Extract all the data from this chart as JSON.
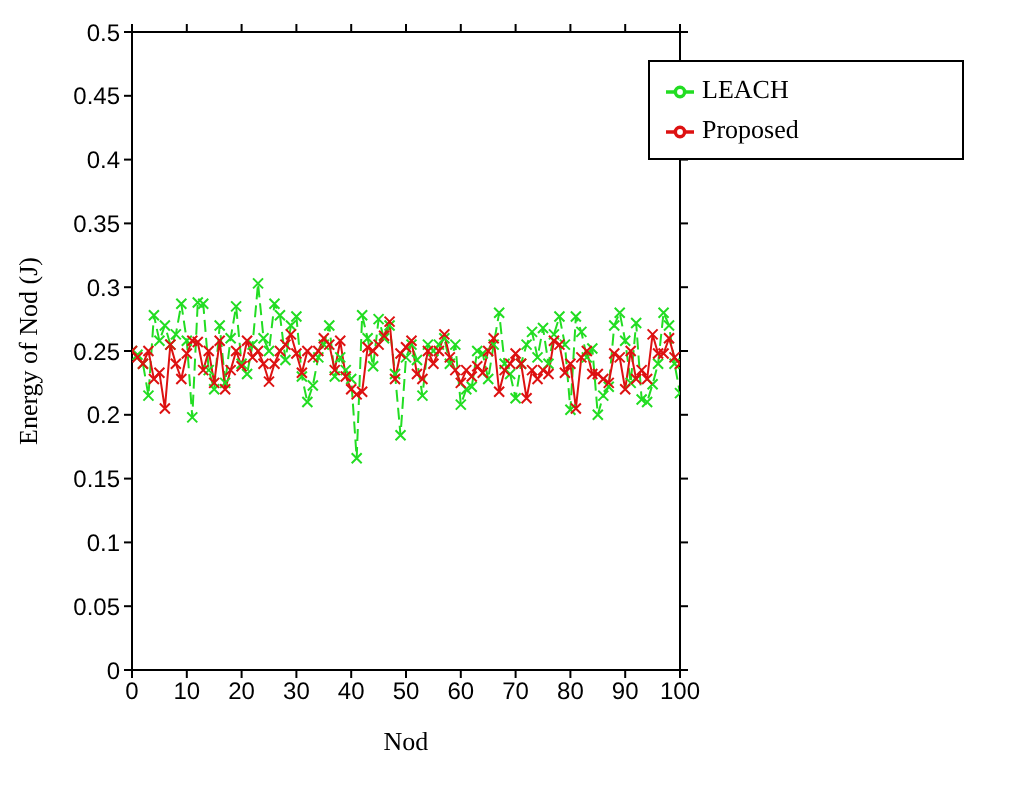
{
  "chart_data": {
    "type": "line",
    "xlabel": "Nod",
    "ylabel": "Energy of Nod (J)",
    "x": [
      0,
      1,
      2,
      3,
      4,
      5,
      6,
      7,
      8,
      9,
      10,
      11,
      12,
      13,
      14,
      15,
      16,
      17,
      18,
      19,
      20,
      21,
      22,
      23,
      24,
      25,
      26,
      27,
      28,
      29,
      30,
      31,
      32,
      33,
      34,
      35,
      36,
      37,
      38,
      39,
      40,
      41,
      42,
      43,
      44,
      45,
      46,
      47,
      48,
      49,
      50,
      51,
      52,
      53,
      54,
      55,
      56,
      57,
      58,
      59,
      60,
      61,
      62,
      63,
      64,
      65,
      66,
      67,
      68,
      69,
      70,
      71,
      72,
      73,
      74,
      75,
      76,
      77,
      78,
      79,
      80,
      81,
      82,
      83,
      84,
      85,
      86,
      87,
      88,
      89,
      90,
      91,
      92,
      93,
      94,
      95,
      96,
      97,
      98,
      99,
      100
    ],
    "series": [
      {
        "name": "LEACH",
        "color": "#22dd22",
        "line_style": "dashed",
        "values": [
          0.25,
          0.247,
          0.24,
          0.215,
          0.278,
          0.258,
          0.27,
          0.255,
          0.263,
          0.287,
          0.258,
          0.198,
          0.288,
          0.287,
          0.235,
          0.22,
          0.27,
          0.225,
          0.26,
          0.285,
          0.24,
          0.232,
          0.255,
          0.303,
          0.26,
          0.25,
          0.287,
          0.278,
          0.243,
          0.27,
          0.277,
          0.23,
          0.21,
          0.223,
          0.245,
          0.255,
          0.27,
          0.23,
          0.245,
          0.235,
          0.228,
          0.166,
          0.278,
          0.26,
          0.238,
          0.275,
          0.26,
          0.27,
          0.232,
          0.184,
          0.245,
          0.255,
          0.243,
          0.215,
          0.255,
          0.25,
          0.255,
          0.26,
          0.24,
          0.255,
          0.208,
          0.22,
          0.222,
          0.25,
          0.248,
          0.228,
          0.255,
          0.28,
          0.24,
          0.232,
          0.213,
          0.24,
          0.255,
          0.265,
          0.245,
          0.268,
          0.24,
          0.263,
          0.277,
          0.255,
          0.204,
          0.277,
          0.265,
          0.245,
          0.252,
          0.2,
          0.215,
          0.222,
          0.27,
          0.28,
          0.258,
          0.225,
          0.272,
          0.212,
          0.21,
          0.224,
          0.24,
          0.28,
          0.27,
          0.24,
          0.217
        ]
      },
      {
        "name": "Proposed",
        "color": "#dd1111",
        "line_style": "solid",
        "values": [
          0.25,
          0.245,
          0.24,
          0.25,
          0.228,
          0.233,
          0.205,
          0.255,
          0.24,
          0.228,
          0.248,
          0.258,
          0.257,
          0.235,
          0.25,
          0.225,
          0.258,
          0.22,
          0.235,
          0.25,
          0.238,
          0.258,
          0.245,
          0.25,
          0.24,
          0.226,
          0.24,
          0.25,
          0.255,
          0.263,
          0.248,
          0.233,
          0.25,
          0.245,
          0.25,
          0.26,
          0.255,
          0.235,
          0.258,
          0.23,
          0.22,
          0.216,
          0.218,
          0.253,
          0.25,
          0.255,
          0.262,
          0.273,
          0.228,
          0.248,
          0.253,
          0.258,
          0.232,
          0.228,
          0.25,
          0.24,
          0.25,
          0.263,
          0.245,
          0.235,
          0.225,
          0.235,
          0.23,
          0.238,
          0.233,
          0.25,
          0.26,
          0.218,
          0.235,
          0.24,
          0.248,
          0.24,
          0.213,
          0.235,
          0.228,
          0.235,
          0.232,
          0.258,
          0.255,
          0.233,
          0.24,
          0.205,
          0.245,
          0.25,
          0.232,
          0.232,
          0.228,
          0.225,
          0.248,
          0.245,
          0.22,
          0.25,
          0.228,
          0.235,
          0.228,
          0.263,
          0.248,
          0.248,
          0.26,
          0.245,
          0.24
        ]
      }
    ],
    "xlim": [
      0,
      100
    ],
    "xticks": [
      0,
      10,
      20,
      30,
      40,
      50,
      60,
      70,
      80,
      90,
      100
    ],
    "ylim": [
      0,
      0.5
    ],
    "yticks": [
      0,
      0.05,
      0.1,
      0.15,
      0.2,
      0.25,
      0.3,
      0.35,
      0.4,
      0.45,
      0.5
    ],
    "marker": "cross",
    "legend": "top right",
    "grid": false
  }
}
